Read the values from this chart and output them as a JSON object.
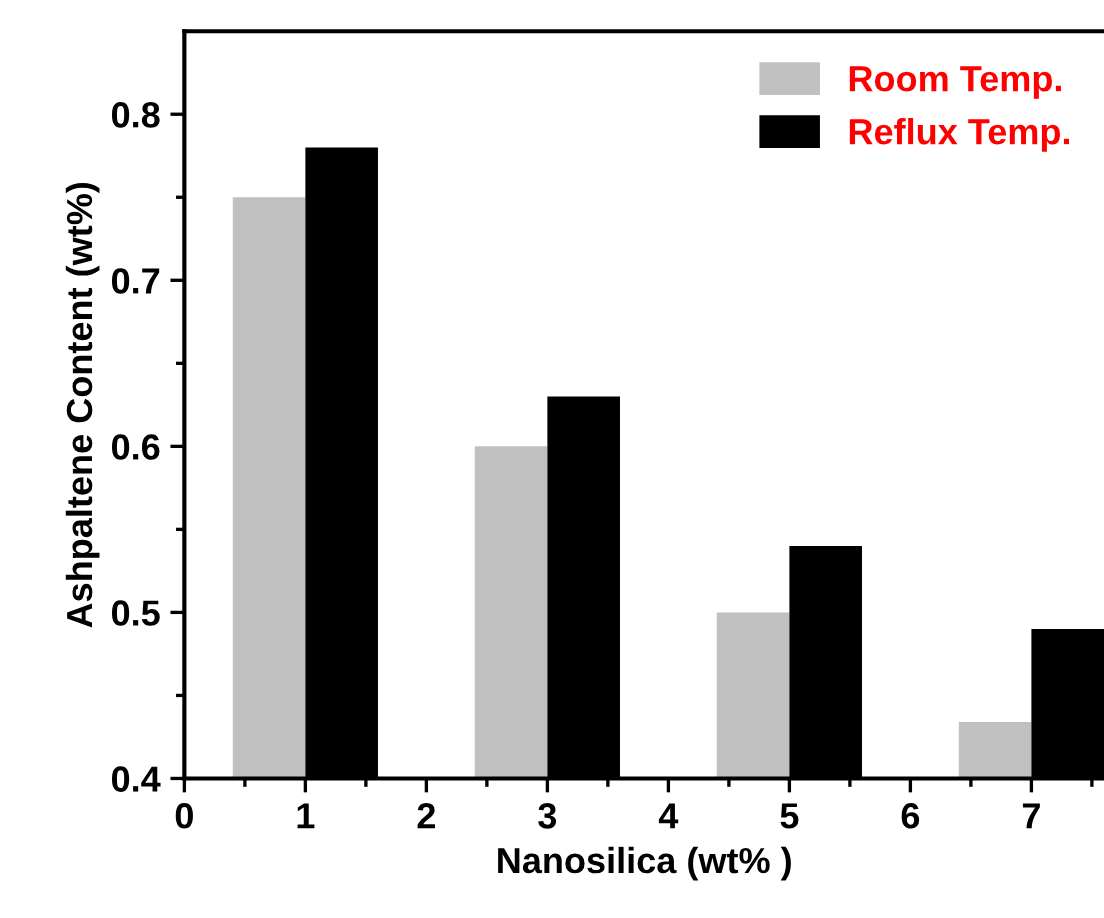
{
  "chart_data": {
    "type": "bar",
    "xlabel": "Nanosilica (wt% )",
    "ylabel": "Ashpaltene Content (wt%)",
    "x": [
      1,
      3,
      5,
      7
    ],
    "series": [
      {
        "name": "Room Temp.",
        "color": "#c0c0c0",
        "values": [
          0.75,
          0.6,
          0.5,
          0.434
        ]
      },
      {
        "name": "Reflux Temp.",
        "color": "#000000",
        "values": [
          0.78,
          0.63,
          0.54,
          0.49
        ]
      }
    ],
    "xlim": [
      0,
      7.6
    ],
    "xticks": [
      0,
      1,
      2,
      3,
      4,
      5,
      6,
      7
    ],
    "ylim": [
      0.4,
      0.85
    ],
    "yticks": [
      0.4,
      0.5,
      0.6,
      0.7,
      0.8
    ],
    "grid": false,
    "legend": "top right"
  }
}
